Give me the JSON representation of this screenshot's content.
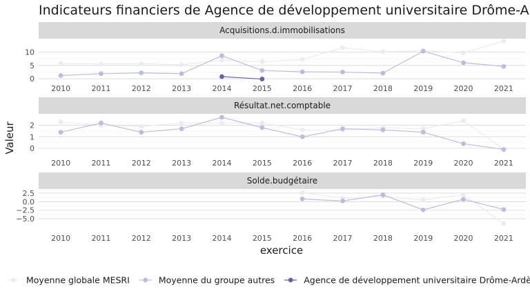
{
  "chart_data": {
    "type": "line",
    "title": "Indicateurs financiers de Agence de développement universitaire Drôme-Ardèche (ADUDA)",
    "xlabel": "exercice",
    "ylabel": "Valeur",
    "x": [
      2010,
      2011,
      2012,
      2013,
      2014,
      2015,
      2016,
      2017,
      2018,
      2019,
      2020,
      2021
    ],
    "legend": {
      "placement": "bottom",
      "entries": [
        "Moyenne globale MESRI",
        "Moyenne du groupe autres",
        "Agence de développement universitaire Drôme-Ardèche (ADUDA)"
      ]
    },
    "colors": {
      "Moyenne globale MESRI": "#ebebf2",
      "Moyenne du groupe autres": "#bcbddc",
      "Agence de développement universitaire Drôme-Ardèche (ADUDA)": "#6a5fa8"
    },
    "panels": [
      {
        "label": "Acquisitions.d.immobilisations",
        "ylim": [
          -1.5,
          15
        ],
        "yticks": [
          0,
          5,
          10
        ],
        "ytick_labels": [
          "0",
          "5",
          "10"
        ],
        "series": [
          {
            "name": "Moyenne globale MESRI",
            "values": [
              5.6,
              5.5,
              5.6,
              5.3,
              6.9,
              6.4,
              7.2,
              11.6,
              10.1,
              10.5,
              9.7,
              14.1
            ]
          },
          {
            "name": "Moyenne du groupe autres",
            "values": [
              1.2,
              1.9,
              2.2,
              1.9,
              8.6,
              3.1,
              2.6,
              2.5,
              2.1,
              10.3,
              6.0,
              4.6
            ]
          },
          {
            "name": "Agence de développement universitaire Drôme-Ardèche (ADUDA)",
            "values": [
              null,
              null,
              null,
              null,
              0.8,
              -0.1,
              null,
              null,
              null,
              null,
              null,
              null
            ]
          }
        ]
      },
      {
        "label": "Résultat.net.comptable",
        "ylim": [
          -0.3,
          3.0
        ],
        "yticks": [
          0,
          1,
          2
        ],
        "ytick_labels": [
          "0",
          "1",
          "2"
        ],
        "series": [
          {
            "name": "Moyenne globale MESRI",
            "values": [
              2.3,
              2.0,
              1.9,
              2.2,
              2.2,
              2.2,
              1.6,
              1.6,
              1.8,
              1.7,
              2.4,
              -0.1
            ]
          },
          {
            "name": "Moyenne du groupe autres",
            "values": [
              1.4,
              2.2,
              1.4,
              1.7,
              2.7,
              1.8,
              1.0,
              1.7,
              1.6,
              1.4,
              0.4,
              -0.1
            ]
          },
          {
            "name": "Agence de développement universitaire Drôme-Ardèche (ADUDA)",
            "values": [
              null,
              null,
              null,
              null,
              null,
              null,
              null,
              null,
              null,
              null,
              null,
              null
            ]
          }
        ]
      },
      {
        "label": "Solde.budgétaire",
        "ylim": [
          -7.2,
          3.7
        ],
        "yticks": [
          2.5,
          0.0,
          -2.5,
          -5.0
        ],
        "ytick_labels": [
          "2.5",
          "0.0",
          "−2.5",
          "−5.0"
        ],
        "series": [
          {
            "name": "Moyenne globale MESRI",
            "values": [
              null,
              null,
              null,
              null,
              null,
              null,
              2.6,
              1.0,
              1.5,
              0.5,
              2.0,
              -6.4
            ]
          },
          {
            "name": "Moyenne du groupe autres",
            "values": [
              null,
              null,
              null,
              null,
              null,
              null,
              0.8,
              0.2,
              2.0,
              -2.4,
              0.7,
              -2.3
            ]
          },
          {
            "name": "Agence de développement universitaire Drôme-Ardèche (ADUDA)",
            "values": [
              null,
              null,
              null,
              null,
              null,
              null,
              null,
              null,
              null,
              null,
              null,
              null
            ]
          }
        ]
      }
    ]
  }
}
